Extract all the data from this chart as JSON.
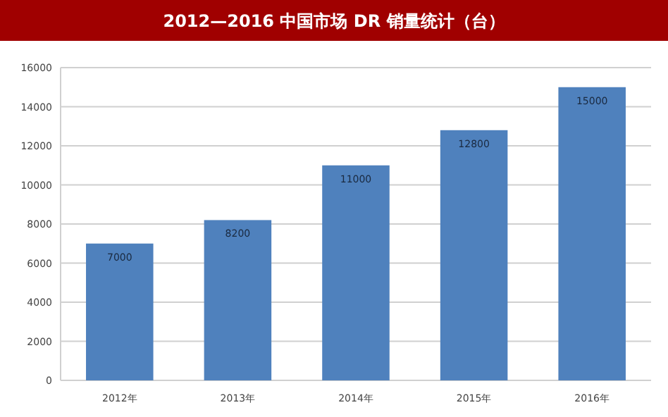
{
  "chart_data": {
    "type": "bar",
    "title": "2012—2016 中国市场 DR 销量统计（台）",
    "categories": [
      "2012年",
      "2013年",
      "2014年",
      "2015年",
      "2016年"
    ],
    "values": [
      7000,
      8200,
      11000,
      12800,
      15000
    ],
    "color": "#4f81bd",
    "ylim": [
      0,
      16000
    ],
    "yticks": [
      0,
      2000,
      4000,
      6000,
      8000,
      10000,
      12000,
      14000,
      16000
    ],
    "grid": "y",
    "data_labels": true
  }
}
